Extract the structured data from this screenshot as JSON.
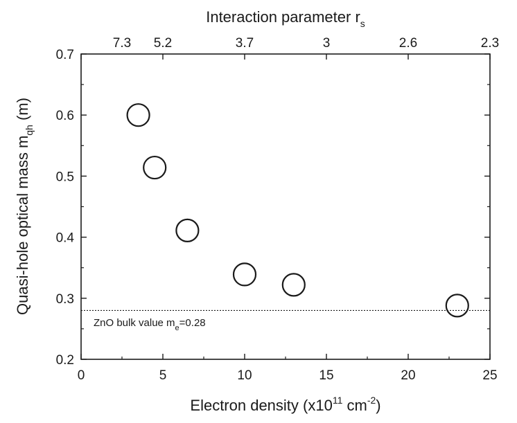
{
  "chart_data": {
    "type": "scatter",
    "xlabel": {
      "main": "Electron density (x10",
      "sup1": "11",
      "mid": " cm",
      "sup2": "-2",
      "end": ")"
    },
    "ylabel": {
      "main": "Quasi-hole optical mass m",
      "sub": "qh",
      "end": " (m)"
    },
    "top_axis": {
      "title": {
        "main": "Interaction parameter r",
        "sub": "s"
      },
      "ticks": [
        {
          "x": 2.5,
          "label": "7.3"
        },
        {
          "x": 5.0,
          "label": "5.2"
        },
        {
          "x": 10.0,
          "label": "3.7"
        },
        {
          "x": 15.0,
          "label": "3"
        },
        {
          "x": 20.0,
          "label": "2.6"
        },
        {
          "x": 25.0,
          "label": "2.3"
        }
      ]
    },
    "xlim": [
      0,
      25
    ],
    "ylim": [
      0.2,
      0.7
    ],
    "x_ticks": [
      "0",
      "5",
      "10",
      "15",
      "20",
      "25"
    ],
    "y_ticks": [
      "0.2",
      "0.3",
      "0.4",
      "0.5",
      "0.6",
      "0.7"
    ],
    "points": [
      {
        "x": 3.5,
        "y": 0.6
      },
      {
        "x": 4.5,
        "y": 0.514
      },
      {
        "x": 6.5,
        "y": 0.411
      },
      {
        "x": 10.0,
        "y": 0.339
      },
      {
        "x": 13.0,
        "y": 0.322
      },
      {
        "x": 23.0,
        "y": 0.288
      }
    ],
    "reference_line": {
      "y": 0.28,
      "label": {
        "main": "ZnO bulk value m",
        "sub": "e",
        "end": "=0.28"
      }
    },
    "grid": false,
    "legend": "none",
    "marker": "open-circle"
  }
}
